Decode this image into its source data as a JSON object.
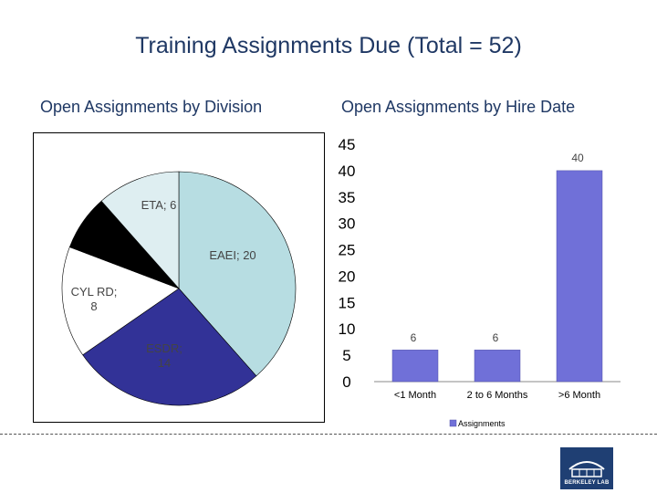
{
  "slide": {
    "title": "Training Assignments Due (Total = 52)",
    "logo_text": "BERKELEY LAB"
  },
  "chart_data": [
    {
      "type": "pie",
      "title": "Open Assignments by Division",
      "slices": [
        {
          "label": "EAEI; 20",
          "value": 20,
          "color": "#b7dde2"
        },
        {
          "label": "ESDR; 14",
          "value": 14,
          "color": "#323297"
        },
        {
          "label": "CYL RD; 8",
          "value": 8,
          "color": "#ffffff"
        },
        {
          "label": "",
          "value": 4,
          "color": "#000000"
        },
        {
          "label": "ETA; 6",
          "value": 6,
          "color": "#deeef1"
        }
      ]
    },
    {
      "type": "bar",
      "title": "Open Assignments by Hire Date",
      "categories": [
        "<1 Month",
        "2 to 6 Months",
        ">6 Month"
      ],
      "series": [
        {
          "name": "Assignments",
          "values": [
            6,
            6,
            40
          ],
          "color": "#7070d8"
        }
      ],
      "data_labels": [
        "6",
        "6",
        "40"
      ],
      "ylim": [
        0,
        45
      ],
      "yticks": [
        "0",
        "5",
        "10",
        "15",
        "20",
        "25",
        "30",
        "35",
        "40",
        "45"
      ],
      "legend_position": "bottom",
      "grid": false
    }
  ]
}
